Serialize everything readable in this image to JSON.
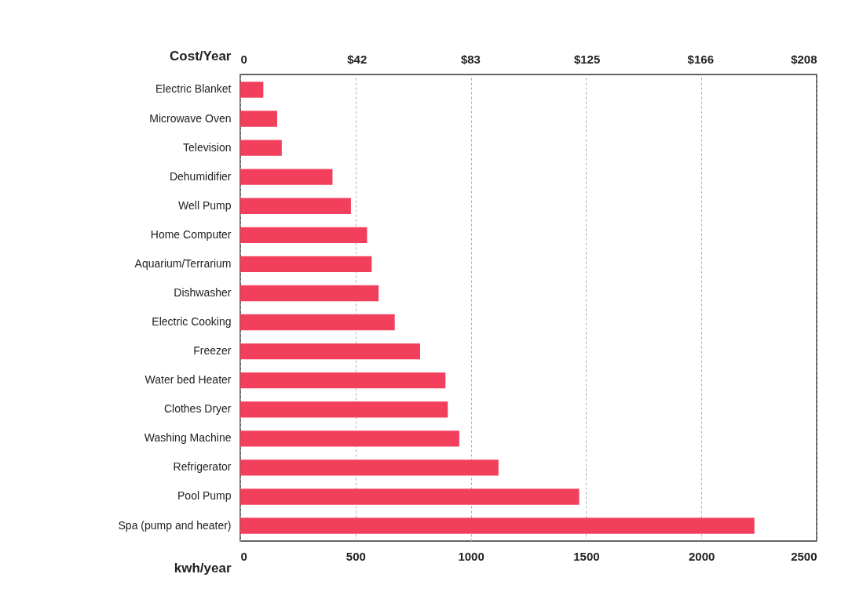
{
  "chart_data": {
    "type": "bar",
    "orientation": "horizontal",
    "xlabel": "kwh/year",
    "x2label": "Cost/Year",
    "categories": [
      "Electric Blanket",
      "Microwave Oven",
      "Television",
      "Dehumidifier",
      "Well Pump",
      "Home Computer",
      "Aquarium/Terrarium",
      "Dishwasher",
      "Electric Cooking",
      "Freezer",
      "Water bed Heater",
      "Clothes Dryer",
      "Washing Machine",
      "Refrigerator",
      "Pool Pump",
      "Spa (pump and heater)"
    ],
    "values": [
      100,
      160,
      180,
      400,
      480,
      550,
      570,
      600,
      670,
      780,
      890,
      900,
      950,
      1120,
      1470,
      2230
    ],
    "color": "#f2405c",
    "xlim": [
      0,
      2500
    ],
    "xticks": [
      0,
      500,
      1000,
      1500,
      2000,
      2500
    ],
    "x2lim": [
      0,
      208
    ],
    "x2ticks": [
      0,
      {
        "value": 42,
        "label": "$42"
      },
      {
        "value": 83,
        "label": "$83"
      },
      {
        "value": 125,
        "label": "$125"
      },
      {
        "value": 166,
        "label": "$166"
      },
      {
        "value": 208,
        "label": "$208"
      }
    ],
    "grid": "x"
  }
}
